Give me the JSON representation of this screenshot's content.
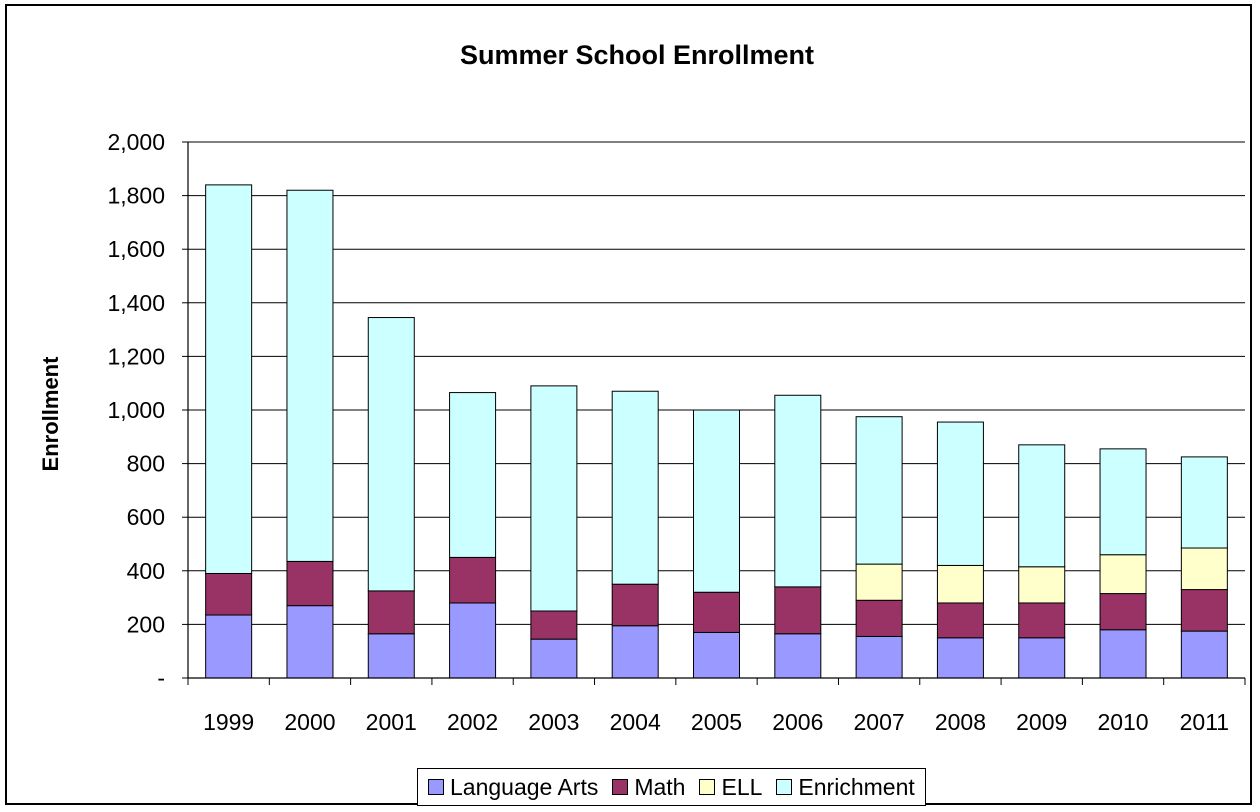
{
  "chart_data": {
    "type": "bar",
    "stacked": true,
    "title": "Summer School Enrollment",
    "ylabel": "Enrollment",
    "xlabel": "",
    "ylim": [
      0,
      2000
    ],
    "yticks": [
      0,
      200,
      400,
      600,
      800,
      1000,
      1200,
      1400,
      1600,
      1800,
      2000
    ],
    "ytick_labels": [
      "-",
      "200",
      "400",
      "600",
      "800",
      "1,000",
      "1,200",
      "1,400",
      "1,600",
      "1,800",
      "2,000"
    ],
    "grid": true,
    "legend_position": "bottom",
    "categories": [
      "1999",
      "2000",
      "2001",
      "2002",
      "2003",
      "2004",
      "2005",
      "2006",
      "2007",
      "2008",
      "2009",
      "2010",
      "2011"
    ],
    "series": [
      {
        "name": "Language Arts",
        "color": "#9999ff",
        "values": [
          235,
          270,
          165,
          280,
          145,
          195,
          170,
          165,
          155,
          150,
          150,
          180,
          175
        ]
      },
      {
        "name": "Math",
        "color": "#993366",
        "values": [
          155,
          165,
          160,
          170,
          105,
          155,
          150,
          175,
          135,
          130,
          130,
          135,
          155
        ]
      },
      {
        "name": "ELL",
        "color": "#ffffcc",
        "values": [
          0,
          0,
          0,
          0,
          0,
          0,
          0,
          0,
          135,
          140,
          135,
          145,
          155
        ]
      },
      {
        "name": "Enrichment",
        "color": "#ccffff",
        "values": [
          1450,
          1385,
          1020,
          615,
          840,
          720,
          680,
          715,
          550,
          535,
          455,
          395,
          340
        ]
      }
    ]
  }
}
